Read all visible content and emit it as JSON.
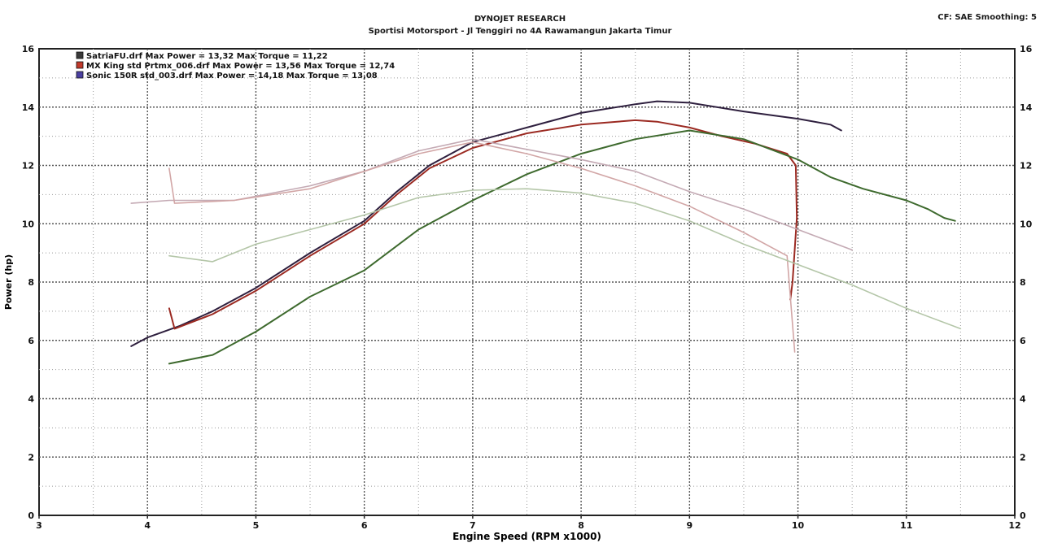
{
  "header": {
    "title": "DYNOJET RESEARCH",
    "subtitle": "Sportisi Motorsport - Jl Tenggiri no 4A Rawamangun Jakarta Timur",
    "corner_text": "CF: SAE  Smoothing: 5"
  },
  "chart_data": {
    "type": "line",
    "xlabel": "Engine Speed (RPM x1000)",
    "ylabel": "Power (hp)",
    "y2label": "",
    "xlim": [
      3,
      12
    ],
    "ylim": [
      0,
      16
    ],
    "xticks": [
      "3",
      "4",
      "5",
      "6",
      "7",
      "8",
      "9",
      "10",
      "11",
      "12"
    ],
    "yticks": [
      "0",
      "2",
      "4",
      "6",
      "8",
      "10",
      "12",
      "14",
      "16"
    ],
    "grid": true,
    "legend_position": "top-left",
    "legend": [
      {
        "text": "SatriaFU.drf Max Power = 13,32     Max Torque = 11,22",
        "color": "#3a3a3a"
      },
      {
        "text": "MX King std Prtmx_006.drf Max Power = 13,56     Max Torque = 12,74",
        "color": "#c0392b"
      },
      {
        "text": "Sonic 150R std_003.drf Max Power = 14,18     Max Torque = 13,08",
        "color": "#4a3fa0"
      }
    ],
    "series": [
      {
        "role": "power",
        "color": "#2e1f3e",
        "points": [
          [
            3.85,
            5.8
          ],
          [
            4.0,
            6.1
          ],
          [
            4.3,
            6.5
          ],
          [
            4.6,
            7.0
          ],
          [
            5.0,
            7.8
          ],
          [
            5.5,
            9.0
          ],
          [
            6.0,
            10.1
          ],
          [
            6.3,
            11.1
          ],
          [
            6.6,
            12.0
          ],
          [
            7.0,
            12.8
          ],
          [
            7.5,
            13.3
          ],
          [
            8.0,
            13.8
          ],
          [
            8.5,
            14.1
          ],
          [
            8.7,
            14.2
          ],
          [
            9.0,
            14.15
          ],
          [
            9.5,
            13.85
          ],
          [
            10.0,
            13.6
          ],
          [
            10.3,
            13.4
          ],
          [
            10.4,
            13.2
          ]
        ]
      },
      {
        "role": "power",
        "color": "#9b2a22",
        "points": [
          [
            4.2,
            7.1
          ],
          [
            4.25,
            6.4
          ],
          [
            4.6,
            6.9
          ],
          [
            5.0,
            7.7
          ],
          [
            5.5,
            8.9
          ],
          [
            6.0,
            10.0
          ],
          [
            6.3,
            11.0
          ],
          [
            6.6,
            11.9
          ],
          [
            7.0,
            12.6
          ],
          [
            7.5,
            13.1
          ],
          [
            8.0,
            13.4
          ],
          [
            8.5,
            13.55
          ],
          [
            8.7,
            13.5
          ],
          [
            9.0,
            13.3
          ],
          [
            9.3,
            13.0
          ],
          [
            9.6,
            12.75
          ],
          [
            9.9,
            12.4
          ],
          [
            9.98,
            12.0
          ],
          [
            9.99,
            10.2
          ],
          [
            9.95,
            8.0
          ],
          [
            9.93,
            7.4
          ]
        ]
      },
      {
        "role": "power",
        "color": "#3e6a2e",
        "points": [
          [
            4.2,
            5.2
          ],
          [
            4.6,
            5.5
          ],
          [
            5.0,
            6.3
          ],
          [
            5.5,
            7.5
          ],
          [
            6.0,
            8.4
          ],
          [
            6.5,
            9.8
          ],
          [
            7.0,
            10.8
          ],
          [
            7.5,
            11.7
          ],
          [
            8.0,
            12.4
          ],
          [
            8.5,
            12.9
          ],
          [
            9.0,
            13.2
          ],
          [
            9.5,
            12.9
          ],
          [
            10.0,
            12.2
          ],
          [
            10.3,
            11.6
          ],
          [
            10.6,
            11.2
          ],
          [
            11.0,
            10.8
          ],
          [
            11.2,
            10.5
          ],
          [
            11.35,
            10.2
          ],
          [
            11.45,
            10.1
          ]
        ]
      },
      {
        "role": "torque",
        "color": "#c4aab4",
        "points": [
          [
            3.85,
            10.7
          ],
          [
            4.2,
            10.8
          ],
          [
            4.8,
            10.8
          ],
          [
            5.5,
            11.3
          ],
          [
            6.0,
            11.8
          ],
          [
            6.5,
            12.5
          ],
          [
            7.0,
            12.9
          ],
          [
            7.5,
            12.55
          ],
          [
            8.0,
            12.2
          ],
          [
            8.5,
            11.8
          ],
          [
            9.0,
            11.1
          ],
          [
            9.5,
            10.5
          ],
          [
            10.0,
            9.8
          ],
          [
            10.5,
            9.1
          ]
        ]
      },
      {
        "role": "torque",
        "color": "#d2a6a6",
        "points": [
          [
            4.2,
            11.9
          ],
          [
            4.25,
            10.7
          ],
          [
            4.8,
            10.8
          ],
          [
            5.5,
            11.2
          ],
          [
            6.0,
            11.8
          ],
          [
            6.5,
            12.4
          ],
          [
            7.0,
            12.8
          ],
          [
            7.5,
            12.4
          ],
          [
            8.0,
            11.9
          ],
          [
            8.5,
            11.3
          ],
          [
            9.0,
            10.6
          ],
          [
            9.5,
            9.7
          ],
          [
            9.9,
            8.9
          ],
          [
            9.97,
            5.6
          ]
        ]
      },
      {
        "role": "torque",
        "color": "#b4c6a8",
        "points": [
          [
            4.2,
            8.9
          ],
          [
            4.6,
            8.7
          ],
          [
            5.0,
            9.3
          ],
          [
            5.5,
            9.8
          ],
          [
            6.0,
            10.3
          ],
          [
            6.5,
            10.9
          ],
          [
            7.0,
            11.15
          ],
          [
            7.5,
            11.2
          ],
          [
            8.0,
            11.05
          ],
          [
            8.5,
            10.7
          ],
          [
            9.0,
            10.1
          ],
          [
            9.5,
            9.3
          ],
          [
            10.0,
            8.6
          ],
          [
            10.5,
            7.9
          ],
          [
            11.0,
            7.1
          ],
          [
            11.5,
            6.4
          ]
        ]
      }
    ]
  }
}
